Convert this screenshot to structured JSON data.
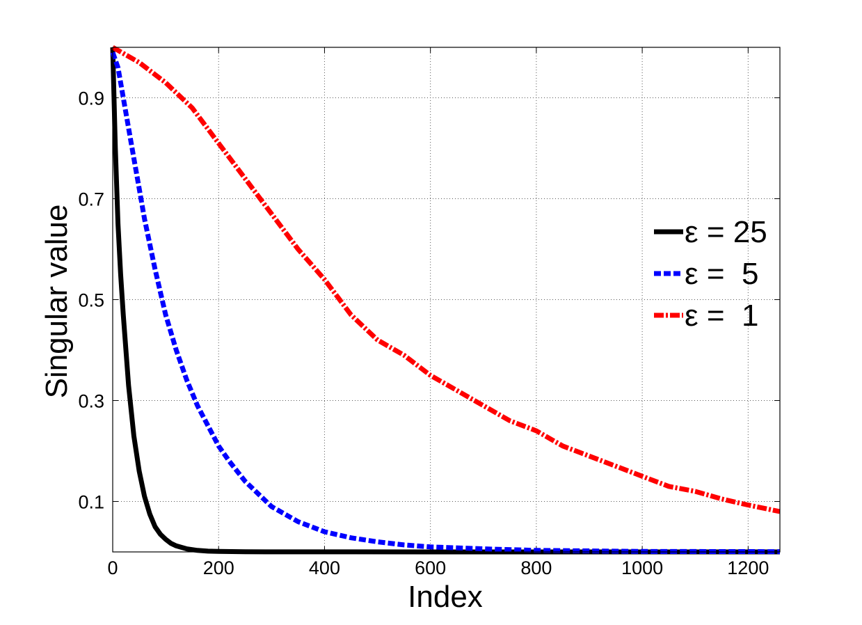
{
  "chart_data": {
    "type": "line",
    "title": "",
    "xlabel": "Index",
    "ylabel": "Singular value",
    "xlim": [
      0,
      1260
    ],
    "ylim": [
      0,
      1.0
    ],
    "xticks": [
      0,
      200,
      400,
      600,
      800,
      1000,
      1200
    ],
    "xtick_labels": [
      "0",
      "200",
      "400",
      "600",
      "800",
      "1000",
      "1200"
    ],
    "yticks": [
      0.1,
      0.3,
      0.5,
      0.7,
      0.9
    ],
    "ytick_labels": [
      "0.1",
      "0.3",
      "0.5",
      "0.7",
      "0.9"
    ],
    "grid": true,
    "legend_position": "right-middle",
    "series": [
      {
        "name": "ε = 25",
        "color": "#000000",
        "style": "solid",
        "x": [
          0,
          2,
          5,
          10,
          15,
          20,
          25,
          30,
          40,
          50,
          60,
          70,
          80,
          90,
          100,
          110,
          120,
          140,
          160,
          180,
          200,
          250,
          300,
          400,
          600,
          800,
          1000,
          1260
        ],
        "y": [
          1.0,
          0.92,
          0.8,
          0.65,
          0.55,
          0.47,
          0.4,
          0.33,
          0.23,
          0.16,
          0.11,
          0.075,
          0.05,
          0.035,
          0.025,
          0.017,
          0.012,
          0.006,
          0.003,
          0.0015,
          0.001,
          0.0004,
          0.0002,
          0.0001,
          0.0,
          0.0,
          0.0,
          0.0
        ]
      },
      {
        "name": "ε =  5",
        "color": "#0000ff",
        "style": "dashed",
        "x": [
          0,
          10,
          20,
          30,
          40,
          50,
          60,
          70,
          80,
          100,
          120,
          140,
          160,
          180,
          200,
          220,
          250,
          300,
          350,
          400,
          450,
          500,
          550,
          600,
          700,
          800,
          1000,
          1260
        ],
        "y": [
          0.99,
          0.96,
          0.9,
          0.84,
          0.78,
          0.72,
          0.66,
          0.61,
          0.56,
          0.47,
          0.4,
          0.34,
          0.29,
          0.25,
          0.21,
          0.18,
          0.14,
          0.09,
          0.06,
          0.04,
          0.028,
          0.02,
          0.014,
          0.01,
          0.006,
          0.003,
          0.001,
          0.0005
        ]
      },
      {
        "name": "ε =  1",
        "color": "#ff0000",
        "style": "dashdot",
        "x": [
          0,
          50,
          100,
          150,
          200,
          250,
          300,
          350,
          400,
          450,
          500,
          550,
          600,
          650,
          700,
          750,
          800,
          850,
          900,
          950,
          1000,
          1050,
          1100,
          1150,
          1200,
          1260
        ],
        "y": [
          1.0,
          0.97,
          0.93,
          0.88,
          0.81,
          0.74,
          0.67,
          0.6,
          0.54,
          0.47,
          0.42,
          0.39,
          0.35,
          0.32,
          0.29,
          0.26,
          0.24,
          0.21,
          0.19,
          0.17,
          0.15,
          0.13,
          0.12,
          0.105,
          0.093,
          0.08
        ]
      }
    ]
  }
}
